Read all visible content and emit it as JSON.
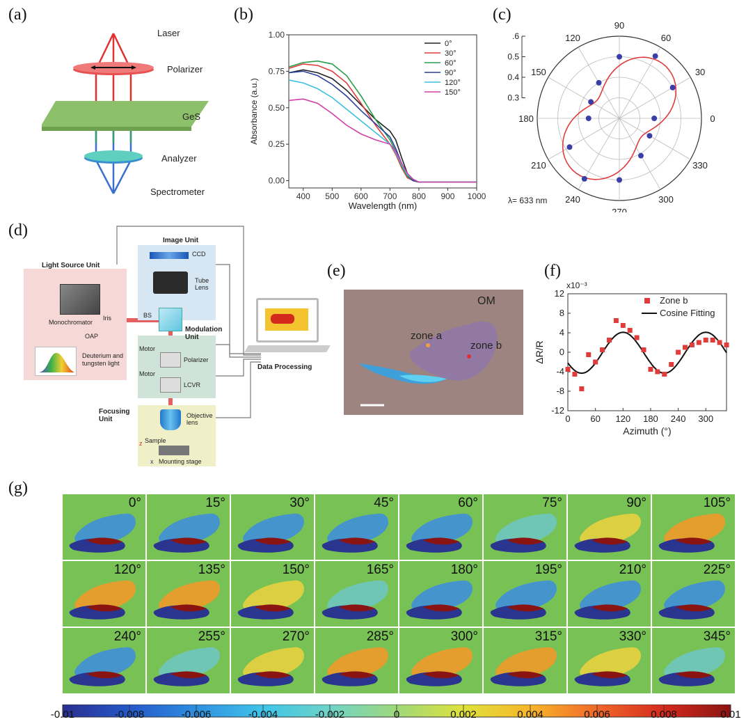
{
  "panels": {
    "a": {
      "label": "(a)",
      "components": [
        "Laser",
        "Polarizer",
        "GeS",
        "Analyzer",
        "Spectrometer"
      ]
    },
    "b": {
      "label": "(b)"
    },
    "c": {
      "label": "(c)"
    },
    "d": {
      "label": "(d)",
      "units": {
        "image": "Image Unit",
        "light": "Light Source Unit",
        "modulation": "Modulation\nUnit",
        "focusing": "Focusing\nUnit",
        "data": "Data Processing"
      },
      "parts": {
        "ccd": "CCD",
        "tube_lens": "Tube\nLens",
        "bs": "BS",
        "mono": "Monochromator",
        "iris": "Iris",
        "oap": "OAP",
        "lamp": "Deuterium and\ntungsten light",
        "motor1": "Motor",
        "motor2": "Motor",
        "polarizer": "Polarizer",
        "lcvr": "LCVR",
        "objective": "Objective\nlens",
        "sample": "Sample",
        "stage": "Mounting stage",
        "z": "z",
        "x": "x"
      }
    },
    "e": {
      "label": "(e)",
      "om": "OM",
      "zone_a": "zone a",
      "zone_b": "zone b"
    },
    "f": {
      "label": "(f)"
    },
    "g": {
      "label": "(g)",
      "angles": [
        "0°",
        "15°",
        "30°",
        "45°",
        "60°",
        "75°",
        "90°",
        "105°",
        "120°",
        "135°",
        "150°",
        "165°",
        "180°",
        "195°",
        "210°",
        "225°",
        "240°",
        "255°",
        "270°",
        "285°",
        "300°",
        "315°",
        "330°",
        "345°"
      ],
      "colorbar_ticks": [
        "-0.01",
        "-0.008",
        "-0.006",
        "-0.004",
        "-0.002",
        "0",
        "0.002",
        "0.004",
        "0.006",
        "0.008",
        "0.01"
      ],
      "colorbar_colors": [
        "#2b2f8f",
        "#2458c9",
        "#2f8fe0",
        "#3fc4e8",
        "#6fd3c8",
        "#9fd87a",
        "#dfe23c",
        "#f7b62a",
        "#f0682a",
        "#d42a1e",
        "#8a1412"
      ]
    }
  },
  "chart_data": [
    {
      "id": "b",
      "type": "line",
      "xlabel": "Wavelength (nm)",
      "ylabel": "Absorbance (a.u.)",
      "xlim": [
        350,
        1000
      ],
      "ylim": [
        -0.05,
        1.0
      ],
      "xticks": [
        "400",
        "500",
        "600",
        "700",
        "800",
        "900",
        "1000"
      ],
      "yticks": [
        "0.00",
        "0.25",
        "0.50",
        "0.75",
        "1.00"
      ],
      "legend": "top-right",
      "x": [
        350,
        400,
        450,
        500,
        550,
        600,
        650,
        700,
        720,
        740,
        760,
        780,
        800,
        850,
        900,
        1000
      ],
      "series": [
        {
          "name": "0°",
          "color": "#222222",
          "values": [
            0.74,
            0.76,
            0.74,
            0.7,
            0.62,
            0.52,
            0.42,
            0.34,
            0.28,
            0.16,
            0.05,
            0.0,
            -0.01,
            -0.01,
            -0.01,
            -0.01
          ]
        },
        {
          "name": "30°",
          "color": "#e03c3c",
          "values": [
            0.77,
            0.8,
            0.79,
            0.75,
            0.67,
            0.53,
            0.38,
            0.25,
            0.18,
            0.09,
            0.02,
            0.0,
            -0.01,
            -0.01,
            -0.01,
            -0.01
          ]
        },
        {
          "name": "60°",
          "color": "#2a9d4a",
          "values": [
            0.78,
            0.81,
            0.82,
            0.8,
            0.72,
            0.58,
            0.42,
            0.28,
            0.2,
            0.1,
            0.03,
            0.0,
            -0.01,
            -0.01,
            -0.01,
            -0.01
          ]
        },
        {
          "name": "90°",
          "color": "#2a3f9d",
          "values": [
            0.74,
            0.75,
            0.72,
            0.66,
            0.58,
            0.48,
            0.39,
            0.3,
            0.22,
            0.12,
            0.04,
            0.0,
            -0.01,
            -0.01,
            -0.01,
            -0.01
          ]
        },
        {
          "name": "120°",
          "color": "#3cc0e0",
          "values": [
            0.69,
            0.67,
            0.63,
            0.57,
            0.49,
            0.41,
            0.33,
            0.25,
            0.19,
            0.11,
            0.04,
            0.01,
            -0.01,
            -0.01,
            -0.01,
            -0.01
          ]
        },
        {
          "name": "150°",
          "color": "#d23fa5",
          "values": [
            0.55,
            0.56,
            0.53,
            0.46,
            0.38,
            0.32,
            0.28,
            0.25,
            0.2,
            0.12,
            0.05,
            0.01,
            -0.01,
            -0.01,
            -0.01,
            -0.01
          ]
        }
      ]
    },
    {
      "id": "c",
      "type": "scatter",
      "coordinate": "polar",
      "radial_ticks": [
        ".6",
        "0.5",
        "0.4",
        "0.3"
      ],
      "angle_ticks": [
        "0",
        "30",
        "60",
        "90",
        "120",
        "150",
        "180",
        "210",
        "240",
        "270",
        "300",
        "330"
      ],
      "annotation": "λ= 633 nm",
      "r_range": [
        0.3,
        0.6
      ],
      "points": [
        {
          "theta": 0,
          "r": 0.37
        },
        {
          "theta": 30,
          "r": 0.5
        },
        {
          "theta": 60,
          "r": 0.55
        },
        {
          "theta": 90,
          "r": 0.5
        },
        {
          "theta": 120,
          "r": 0.4
        },
        {
          "theta": 150,
          "r": 0.36
        },
        {
          "theta": 180,
          "r": 0.35
        },
        {
          "theta": 210,
          "r": 0.48
        },
        {
          "theta": 240,
          "r": 0.54
        },
        {
          "theta": 270,
          "r": 0.5
        },
        {
          "theta": 300,
          "r": 0.41
        },
        {
          "theta": 330,
          "r": 0.37
        }
      ],
      "fit_color": "#e03c3c",
      "point_color": "#3a3fa8"
    },
    {
      "id": "f",
      "type": "scatter",
      "xlabel": "Azimuth (°)",
      "ylabel": "ΔR/R",
      "yscale_label": "x10⁻³",
      "xlim": [
        0,
        345
      ],
      "ylim": [
        -12,
        12
      ],
      "xticks": [
        "0",
        "60",
        "120",
        "180",
        "240",
        "300"
      ],
      "yticks": [
        "-12",
        "-8",
        "-4",
        "0",
        "4",
        "8",
        "12"
      ],
      "legend": "top-right",
      "series": [
        {
          "name": "Zone b",
          "color": "#e03c3c",
          "x": [
            0,
            15,
            30,
            45,
            60,
            75,
            90,
            105,
            120,
            135,
            150,
            165,
            180,
            195,
            210,
            225,
            240,
            255,
            270,
            285,
            300,
            315,
            330,
            345
          ],
          "y": [
            -3.5,
            -4.5,
            -7.5,
            -0.5,
            -2,
            0.5,
            2.5,
            6.5,
            5.5,
            4.5,
            3,
            0.5,
            -3.5,
            -4,
            -4.5,
            -2.5,
            0,
            1,
            1.5,
            2,
            2.5,
            2.5,
            2,
            1.5
          ]
        },
        {
          "name": "Cosine Fitting",
          "color": "#111111"
        }
      ]
    }
  ]
}
